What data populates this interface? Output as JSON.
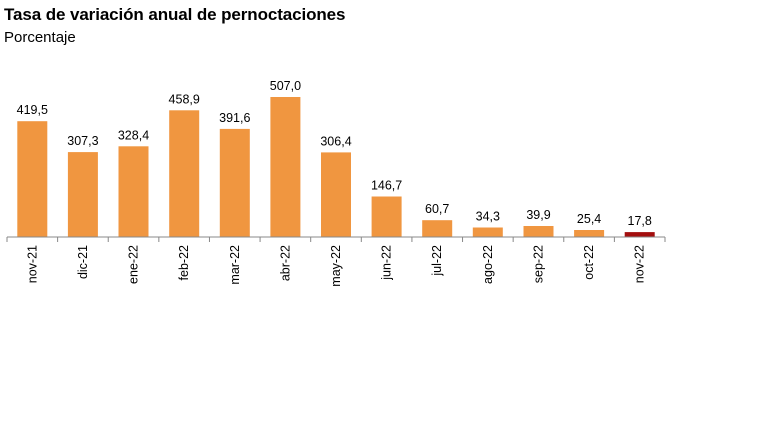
{
  "chart_data": {
    "type": "bar",
    "title": "Tasa de variación anual de pernoctaciones",
    "subtitle": "Porcentaje",
    "categories": [
      "nov-21",
      "dic-21",
      "ene-22",
      "feb-22",
      "mar-22",
      "abr-22",
      "may-22",
      "jun-22",
      "jul-22",
      "ago-22",
      "sep-22",
      "oct-22",
      "nov-22"
    ],
    "values": [
      419.5,
      307.3,
      328.4,
      458.9,
      391.6,
      507.0,
      306.4,
      146.7,
      60.7,
      34.3,
      39.9,
      25.4,
      17.8
    ],
    "value_labels": [
      "419,5",
      "307,3",
      "328,4",
      "458,9",
      "391,6",
      "507,0",
      "306,4",
      "146,7",
      "60,7",
      "34,3",
      "39,9",
      "25,4",
      "17,8"
    ],
    "colors": {
      "bar": "#F09640",
      "highlight": "#A30E0E",
      "axis": "#888888"
    },
    "highlight_index": 12,
    "xlabel": "",
    "ylabel": "",
    "ylim": [
      0,
      507.0
    ],
    "grid": false,
    "legend": "none"
  }
}
